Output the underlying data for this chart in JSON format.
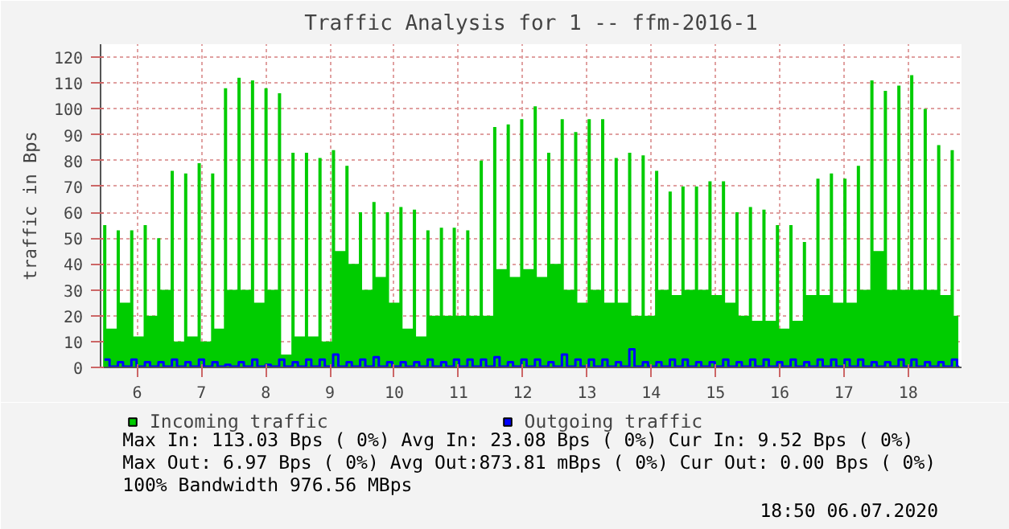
{
  "chart_data": {
    "type": "area",
    "title": "Traffic Analysis for 1 -- ffm-2016-1",
    "ylabel": "traffic in Bps",
    "xlim": [
      5.43,
      18.83
    ],
    "ylim": [
      0,
      125
    ],
    "xticks": [
      6,
      7,
      8,
      9,
      10,
      11,
      12,
      13,
      14,
      15,
      16,
      17,
      18
    ],
    "yticks": [
      0,
      10,
      20,
      30,
      40,
      50,
      60,
      70,
      80,
      90,
      100,
      110,
      120
    ],
    "grid": true,
    "legend": "bottom",
    "annotations": [
      "Max In: 113.03  Bps ( 0%)  Avg In:  23.08  Bps ( 0%)  Cur In:   9.52  Bps ( 0%)",
      "Max Out:  6.97  Bps ( 0%)  Avg Out:873.81 mBps ( 0%)  Cur Out:  0.00  Bps ( 0%)",
      "100% Bandwidth 976.56 MBps",
      "18:50 06.07.2020"
    ],
    "series": [
      {
        "name": "Incoming traffic",
        "color": "#00cc00",
        "x": [
          5.47,
          5.52,
          5.68,
          5.73,
          5.89,
          5.94,
          6.1,
          6.15,
          6.31,
          6.36,
          6.52,
          6.57,
          6.73,
          6.78,
          6.94,
          6.99,
          7.15,
          7.2,
          7.35,
          7.4,
          7.56,
          7.61,
          7.77,
          7.82,
          7.98,
          8.03,
          8.19,
          8.24,
          8.4,
          8.45,
          8.61,
          8.66,
          8.82,
          8.87,
          9.03,
          9.08,
          9.24,
          9.29,
          9.45,
          9.5,
          9.66,
          9.71,
          9.87,
          9.92,
          10.08,
          10.13,
          10.29,
          10.34,
          10.5,
          10.55,
          10.71,
          10.76,
          10.91,
          10.96,
          11.12,
          11.17,
          11.33,
          11.38,
          11.54,
          11.59,
          11.75,
          11.8,
          11.96,
          12.01,
          12.17,
          12.22,
          12.38,
          12.43,
          12.59,
          12.64,
          12.8,
          12.85,
          13.01,
          13.06,
          13.22,
          13.27,
          13.43,
          13.48,
          13.64,
          13.69,
          13.85,
          13.9,
          14.06,
          14.11,
          14.27,
          14.32,
          14.47,
          14.52,
          14.68,
          14.73,
          14.89,
          14.94,
          15.1,
          15.15,
          15.31,
          15.36,
          15.52,
          15.57,
          15.73,
          15.78,
          15.94,
          15.99,
          16.15,
          16.2,
          16.36,
          16.41,
          16.57,
          16.62,
          16.78,
          16.83,
          16.99,
          17.04,
          17.2,
          17.25,
          17.41,
          17.46,
          17.62,
          17.67,
          17.83,
          17.88,
          18.03,
          18.08,
          18.24,
          18.29,
          18.45,
          18.5,
          18.66,
          18.71,
          18.78
        ],
        "values": [
          55,
          15,
          53,
          25,
          53,
          12,
          55,
          20,
          50,
          30,
          76,
          10,
          75,
          12,
          79,
          10,
          75,
          15,
          108,
          30,
          112,
          30,
          111,
          25,
          108,
          30,
          106,
          5,
          83,
          12,
          83,
          12,
          81,
          10,
          84,
          45,
          78,
          40,
          60,
          30,
          64,
          35,
          60,
          25,
          62,
          15,
          61,
          12,
          53,
          20,
          54,
          20,
          54,
          20,
          53,
          20,
          80,
          20,
          93,
          38,
          94,
          35,
          96,
          38,
          101,
          35,
          83,
          40,
          96,
          30,
          91,
          25,
          96,
          30,
          96,
          25,
          81,
          25,
          83,
          20,
          82,
          20,
          76,
          30,
          68,
          28,
          70,
          30,
          70,
          30,
          72,
          28,
          72,
          25,
          60,
          20,
          62,
          18,
          61,
          18,
          55,
          15,
          55,
          18,
          48.5,
          28,
          73,
          28,
          75,
          25,
          73,
          25,
          78,
          30,
          111,
          45,
          107,
          30,
          109,
          30,
          113.03,
          30,
          100,
          30,
          86,
          28,
          84,
          20,
          9.52
        ]
      },
      {
        "name": "Outgoing traffic",
        "type": "step",
        "color": "#0000ff",
        "x": [
          5.49,
          5.57,
          5.7,
          5.78,
          5.91,
          5.99,
          6.12,
          6.2,
          6.33,
          6.41,
          6.54,
          6.62,
          6.75,
          6.83,
          6.96,
          7.04,
          7.17,
          7.25,
          7.37,
          7.45,
          7.58,
          7.66,
          7.79,
          7.87,
          8.0,
          8.08,
          8.21,
          8.29,
          8.42,
          8.5,
          8.63,
          8.71,
          8.84,
          8.92,
          9.05,
          9.13,
          9.26,
          9.34,
          9.47,
          9.55,
          9.68,
          9.76,
          9.89,
          9.97,
          10.1,
          10.18,
          10.31,
          10.39,
          10.52,
          10.6,
          10.73,
          10.81,
          10.93,
          11.01,
          11.14,
          11.22,
          11.35,
          11.43,
          11.56,
          11.64,
          11.77,
          11.85,
          11.98,
          12.06,
          12.19,
          12.27,
          12.4,
          12.48,
          12.61,
          12.69,
          12.82,
          12.9,
          13.03,
          13.11,
          13.24,
          13.32,
          13.45,
          13.53,
          13.66,
          13.74,
          13.87,
          13.95,
          14.08,
          14.16,
          14.29,
          14.37,
          14.49,
          14.57,
          14.7,
          14.78,
          14.91,
          14.99,
          15.12,
          15.2,
          15.33,
          15.41,
          15.54,
          15.62,
          15.75,
          15.83,
          15.96,
          16.04,
          16.17,
          16.25,
          16.38,
          16.46,
          16.59,
          16.67,
          16.8,
          16.88,
          17.01,
          17.09,
          17.22,
          17.3,
          17.43,
          17.51,
          17.64,
          17.72,
          17.85,
          17.93,
          18.05,
          18.13,
          18.26,
          18.34,
          18.47,
          18.55,
          18.68,
          18.76,
          18.78
        ],
        "values": [
          3,
          0.3,
          2,
          0.3,
          3,
          0.3,
          2,
          0.3,
          2,
          0.3,
          3,
          0.3,
          2,
          0.3,
          3,
          0.3,
          2,
          0.3,
          1,
          0.3,
          2,
          0.3,
          3,
          0.3,
          1,
          0.3,
          3,
          0.3,
          2,
          0.3,
          3,
          0.3,
          3,
          0.3,
          5,
          0.3,
          2,
          0.3,
          3,
          0.3,
          4,
          0.3,
          2,
          0.3,
          2,
          0.3,
          2,
          0.3,
          3,
          0.3,
          2,
          0.3,
          3,
          0.3,
          3,
          0.3,
          3,
          0.3,
          4,
          0.3,
          2,
          0.3,
          3,
          0.3,
          3,
          0.3,
          2,
          0.3,
          5,
          0.3,
          3,
          0.3,
          3,
          0.3,
          3,
          0.3,
          2,
          0.3,
          6.97,
          0.3,
          2,
          0.3,
          2,
          0.3,
          3,
          0.3,
          3,
          0.3,
          2,
          0.3,
          2,
          0.3,
          3,
          0.3,
          2,
          0.3,
          3,
          0.3,
          3,
          0.3,
          2,
          0.3,
          3,
          0.3,
          2,
          0.3,
          3,
          0.3,
          3,
          0.3,
          3,
          0.3,
          3,
          0.3,
          2,
          0.3,
          2,
          0.3,
          3,
          0.3,
          3,
          0.3,
          2,
          0.3,
          2,
          0.3,
          3,
          0.3,
          0
        ]
      }
    ]
  }
}
